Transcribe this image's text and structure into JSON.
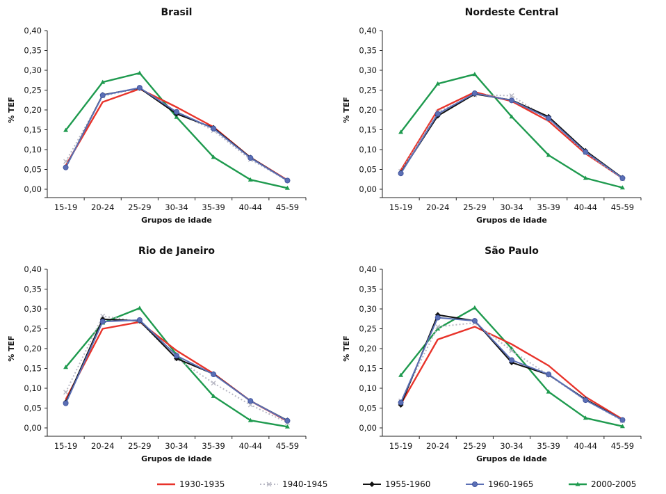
{
  "colors": {
    "1930-1935": "#e8332a",
    "1940-1945": "#b8b8c4",
    "1955-1960": "#111111",
    "1960-1965": "#5b6fb5",
    "2000-2005": "#1e9a4e"
  },
  "legend": {
    "items": [
      "1930-1935",
      "1940-1945",
      "1955-1960",
      "1960-1965",
      "2000-2005"
    ]
  },
  "chart_data": [
    {
      "type": "line",
      "title": "Brasil",
      "xlabel": "Grupos de idade",
      "ylabel": "% TEF",
      "categories": [
        "15-19",
        "20-24",
        "25-29",
        "30-34",
        "35-39",
        "40-44",
        "45-59"
      ],
      "y_ticks": [
        "0,00",
        "0,05",
        "0,10",
        "0,15",
        "0,20",
        "0,25",
        "0,30",
        "0,35",
        "0,40"
      ],
      "ylim": [
        0,
        0.4
      ],
      "grid": false,
      "legend_placement": "bottom",
      "series": [
        {
          "name": "1930-1935",
          "values": [
            0.06,
            0.22,
            0.253,
            0.207,
            0.157,
            0.08,
            0.023
          ]
        },
        {
          "name": "1940-1945",
          "values": [
            0.07,
            0.235,
            0.255,
            0.195,
            0.148,
            0.075,
            0.022
          ]
        },
        {
          "name": "1955-1960",
          "values": [
            0.055,
            0.238,
            0.255,
            0.19,
            0.155,
            0.08,
            0.022
          ]
        },
        {
          "name": "1960-1965",
          "values": [
            0.055,
            0.237,
            0.256,
            0.195,
            0.153,
            0.079,
            0.022
          ]
        },
        {
          "name": "2000-2005",
          "values": [
            0.149,
            0.27,
            0.293,
            0.182,
            0.081,
            0.024,
            0.003
          ]
        }
      ]
    },
    {
      "type": "line",
      "title": "Nordeste Central",
      "xlabel": "Grupos de idade",
      "ylabel": "% TEF",
      "categories": [
        "15-19",
        "20-24",
        "25-29",
        "30-34",
        "35-39",
        "40-44",
        "45-59"
      ],
      "y_ticks": [
        "0,00",
        "0,05",
        "0,10",
        "0,15",
        "0,20",
        "0,25",
        "0,30",
        "0,35",
        "0,40"
      ],
      "ylim": [
        0,
        0.4
      ],
      "grid": false,
      "legend_placement": "bottom",
      "series": [
        {
          "name": "1930-1935",
          "values": [
            0.048,
            0.2,
            0.245,
            0.222,
            0.172,
            0.09,
            0.028
          ]
        },
        {
          "name": "1940-1945",
          "values": [
            0.045,
            0.195,
            0.238,
            0.236,
            0.177,
            0.092,
            0.026
          ]
        },
        {
          "name": "1955-1960",
          "values": [
            0.042,
            0.185,
            0.24,
            0.225,
            0.183,
            0.097,
            0.029
          ]
        },
        {
          "name": "1960-1965",
          "values": [
            0.04,
            0.19,
            0.242,
            0.224,
            0.179,
            0.094,
            0.028
          ]
        },
        {
          "name": "2000-2005",
          "values": [
            0.144,
            0.266,
            0.29,
            0.183,
            0.086,
            0.028,
            0.004
          ]
        }
      ]
    },
    {
      "type": "line",
      "title": "Rio de Janeiro",
      "xlabel": "Grupos de idade",
      "ylabel": "% TEF",
      "categories": [
        "15-19",
        "20-24",
        "25-29",
        "30-34",
        "35-39",
        "40-44",
        "45-59"
      ],
      "y_ticks": [
        "0,00",
        "0,05",
        "0,10",
        "0,15",
        "0,20",
        "0,25",
        "0,30",
        "0,35",
        "0,40"
      ],
      "ylim": [
        0,
        0.4
      ],
      "grid": false,
      "legend_placement": "bottom",
      "series": [
        {
          "name": "1930-1935",
          "values": [
            0.072,
            0.25,
            0.267,
            0.195,
            0.137,
            0.068,
            0.017
          ]
        },
        {
          "name": "1940-1945",
          "values": [
            0.09,
            0.282,
            0.268,
            0.175,
            0.113,
            0.058,
            0.013
          ]
        },
        {
          "name": "1955-1960",
          "values": [
            0.065,
            0.274,
            0.27,
            0.175,
            0.136,
            0.068,
            0.019
          ]
        },
        {
          "name": "1960-1965",
          "values": [
            0.062,
            0.268,
            0.272,
            0.182,
            0.135,
            0.068,
            0.018
          ]
        },
        {
          "name": "2000-2005",
          "values": [
            0.153,
            0.265,
            0.302,
            0.185,
            0.08,
            0.019,
            0.003
          ]
        }
      ]
    },
    {
      "type": "line",
      "title": "São Paulo",
      "xlabel": "Grupos de idade",
      "ylabel": "% TEF",
      "categories": [
        "15-19",
        "20-24",
        "25-29",
        "30-34",
        "35-39",
        "40-44",
        "45-59"
      ],
      "y_ticks": [
        "0,00",
        "0,05",
        "0,10",
        "0,15",
        "0,20",
        "0,25",
        "0,30",
        "0,35",
        "0,40"
      ],
      "ylim": [
        0,
        0.4
      ],
      "grid": false,
      "legend_placement": "bottom",
      "series": [
        {
          "name": "1930-1935",
          "values": [
            0.06,
            0.223,
            0.255,
            0.211,
            0.157,
            0.078,
            0.022
          ]
        },
        {
          "name": "1940-1945",
          "values": [
            0.068,
            0.255,
            0.265,
            0.195,
            0.133,
            0.07,
            0.018
          ]
        },
        {
          "name": "1955-1960",
          "values": [
            0.058,
            0.285,
            0.27,
            0.165,
            0.134,
            0.072,
            0.02
          ]
        },
        {
          "name": "1960-1965",
          "values": [
            0.064,
            0.278,
            0.27,
            0.171,
            0.135,
            0.07,
            0.02
          ]
        },
        {
          "name": "2000-2005",
          "values": [
            0.133,
            0.25,
            0.303,
            0.2,
            0.091,
            0.025,
            0.004
          ]
        }
      ]
    }
  ]
}
